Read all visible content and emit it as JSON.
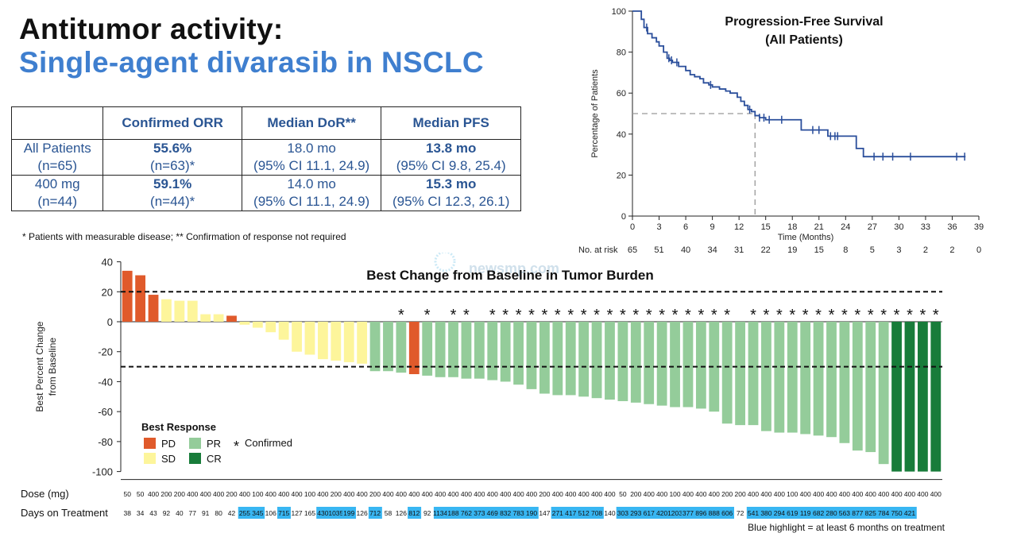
{
  "title": {
    "line1": "Antitumor activity:",
    "line2": "Single-agent divarasib in NSCLC"
  },
  "table": {
    "headers": [
      "",
      "Confirmed ORR",
      "Median DoR**",
      "Median PFS"
    ],
    "rows": [
      {
        "label1": "All Patients",
        "label2": "(n=65)",
        "orr1": "55.6%",
        "orr2": "(n=63)*",
        "dor1": "18.0 mo",
        "dor2": "(95% CI 11.1, 24.9)",
        "pfs1": "13.8 mo",
        "pfs2": "(95% CI 9.8, 25.4)"
      },
      {
        "label1": "400 mg",
        "label2": "(n=44)",
        "orr1": "59.1%",
        "orr2": "(n=44)*",
        "dor1": "14.0 mo",
        "dor2": "(95% CI 11.1, 24.9)",
        "pfs1": "15.3 mo",
        "pfs2": "(95% CI 12.3, 26.1)"
      }
    ]
  },
  "footnote": "* Patients with measurable disease; ** Confirmation of response not required",
  "watermark": "newsmp.com",
  "colors": {
    "PD": "#e05a2b",
    "SD": "#fdf59b",
    "PR": "#94cc9a",
    "CR": "#187c3a",
    "line": "#2a4e9b",
    "highlight": "#38b6f2"
  },
  "chart_data": [
    {
      "type": "line",
      "title": "Progression-Free Survival",
      "subtitle": "(All Patients)",
      "xlabel": "Time (Months)",
      "ylabel": "Percentage of Patients",
      "xlim": [
        0,
        39
      ],
      "ylim": [
        0,
        100
      ],
      "xticks": [
        0,
        3,
        6,
        9,
        12,
        15,
        18,
        21,
        24,
        27,
        30,
        33,
        36,
        39
      ],
      "yticks": [
        0,
        20,
        40,
        60,
        80,
        100
      ],
      "median_line": {
        "x": 13.8,
        "y": 50
      },
      "series": [
        {
          "name": "PFS",
          "x": [
            0,
            1.0,
            1.3,
            1.7,
            2.2,
            2.7,
            3.0,
            3.5,
            3.9,
            4.2,
            4.5,
            5.2,
            6.0,
            6.5,
            7.0,
            7.6,
            8.0,
            8.6,
            9.0,
            9.8,
            10.5,
            11.0,
            11.8,
            12.2,
            12.6,
            13.0,
            13.4,
            13.8,
            14.3,
            15.0,
            16.0,
            19.0,
            22.0,
            25.2,
            26.0,
            37.5
          ],
          "y": [
            100,
            96,
            92,
            89,
            87,
            85,
            83,
            80,
            77,
            76,
            75,
            73,
            71,
            69,
            68,
            67,
            65,
            64,
            63,
            62,
            61,
            60,
            58,
            56,
            54,
            52,
            51,
            49,
            48,
            47,
            47,
            42,
            39,
            33,
            29,
            29
          ]
        }
      ],
      "censor_x": [
        1.6,
        4.1,
        4.4,
        5.0,
        8.8,
        13.2,
        14.3,
        14.8,
        15.4,
        16.8,
        20.3,
        21.0,
        22.3,
        22.8,
        23.1,
        27.2,
        28.2,
        29.3,
        31.3,
        36.5,
        37.4
      ],
      "at_risk": {
        "label": "No. at risk",
        "times": [
          0,
          3,
          6,
          9,
          12,
          15,
          18,
          21,
          24,
          27,
          30,
          33,
          36,
          39
        ],
        "counts": [
          "65",
          "51",
          "40",
          "34",
          "31",
          "22",
          "19",
          "15",
          "8",
          "5",
          "3",
          "2",
          "2",
          "0"
        ]
      }
    },
    {
      "type": "bar",
      "title": "Best Change from Baseline in Tumor Burden",
      "ylabel_lines": [
        "Best Percent Change",
        "from Baseline"
      ],
      "ylim": [
        -100,
        40
      ],
      "yticks": [
        40,
        20,
        0,
        -20,
        -40,
        -60,
        -80,
        -100
      ],
      "reference_lines": [
        20,
        -30
      ],
      "values": [
        34,
        31,
        18,
        15,
        14,
        14,
        5,
        5,
        4,
        -2,
        -4,
        -7,
        -12,
        -20,
        -22,
        -25,
        -26,
        -27,
        -28,
        -33,
        -33,
        -34,
        -35,
        -36,
        -37,
        -37,
        -38,
        -38,
        -39,
        -40,
        -42,
        -45,
        -48,
        -49,
        -49,
        -50,
        -51,
        -52,
        -53,
        -54,
        -55,
        -56,
        -57,
        -57,
        -58,
        -60,
        -68,
        -69,
        -69,
        -73,
        -74,
        -74,
        -75,
        -76,
        -77,
        -81,
        -86,
        -87,
        -95,
        -100,
        -100,
        -100,
        -100
      ],
      "response": [
        "PD",
        "PD",
        "PD",
        "SD",
        "SD",
        "SD",
        "SD",
        "SD",
        "PD",
        "SD",
        "SD",
        "SD",
        "SD",
        "SD",
        "SD",
        "SD",
        "SD",
        "SD",
        "SD",
        "PR",
        "PR",
        "PR",
        "PD",
        "PR",
        "PR",
        "PR",
        "PR",
        "PR",
        "PR",
        "PR",
        "PR",
        "PR",
        "PR",
        "PR",
        "PR",
        "PR",
        "PR",
        "PR",
        "PR",
        "PR",
        "PR",
        "PR",
        "PR",
        "PR",
        "PR",
        "PR",
        "PR",
        "PR",
        "PR",
        "PR",
        "PR",
        "PR",
        "PR",
        "PR",
        "PR",
        "PR",
        "PR",
        "PR",
        "PR",
        "CR",
        "CR",
        "CR",
        "CR"
      ],
      "confirmed": [
        false,
        false,
        false,
        false,
        false,
        false,
        false,
        false,
        false,
        false,
        false,
        false,
        false,
        false,
        false,
        false,
        false,
        false,
        false,
        false,
        false,
        true,
        false,
        true,
        false,
        true,
        true,
        false,
        true,
        true,
        true,
        true,
        true,
        true,
        true,
        true,
        true,
        true,
        true,
        true,
        true,
        true,
        true,
        true,
        true,
        true,
        true,
        false,
        true,
        true,
        true,
        true,
        true,
        true,
        true,
        true,
        true,
        true,
        true,
        true,
        true,
        true,
        true
      ],
      "dose_label": "Dose (mg)",
      "dose": [
        "50",
        "50",
        "400",
        "200",
        "200",
        "400",
        "400",
        "400",
        "200",
        "400",
        "100",
        "400",
        "400",
        "400",
        "100",
        "400",
        "200",
        "400",
        "400",
        "200",
        "400",
        "400",
        "400",
        "400",
        "400",
        "400",
        "400",
        "400",
        "400",
        "400",
        "400",
        "400",
        "200",
        "400",
        "400",
        "400",
        "400",
        "400",
        "50",
        "200",
        "400",
        "400",
        "100",
        "400",
        "400",
        "400",
        "200",
        "200",
        "400",
        "400",
        "400",
        "100",
        "400",
        "400",
        "400",
        "400",
        "400",
        "400",
        "400",
        "400",
        "400",
        "400",
        "400"
      ],
      "days_label": "Days on Treatment",
      "days": [
        "38",
        "34",
        "43",
        "92",
        "40",
        "77",
        "91",
        "80",
        "42",
        "255",
        "345",
        "106",
        "715",
        "127",
        "165",
        "430",
        "1035",
        "199",
        "126",
        "712",
        "58",
        "126",
        "812",
        "92",
        "1134",
        "188",
        "762",
        "373",
        "469",
        "832",
        "783",
        "190",
        "147",
        "271",
        "417",
        "512",
        "708",
        "140",
        "303",
        "293",
        "617",
        "420",
        "1203",
        "377",
        "896",
        "888",
        "606",
        "72",
        "541",
        "380",
        "294",
        "619",
        "119",
        "682",
        "280",
        "563",
        "877",
        "825",
        "784",
        "750",
        "421",
        "",
        ""
      ],
      "days_highlight": [
        false,
        false,
        false,
        false,
        false,
        false,
        false,
        false,
        false,
        true,
        true,
        false,
        true,
        false,
        false,
        true,
        true,
        true,
        false,
        true,
        false,
        false,
        true,
        false,
        true,
        true,
        true,
        true,
        true,
        true,
        true,
        true,
        false,
        true,
        true,
        true,
        true,
        false,
        true,
        true,
        true,
        true,
        true,
        true,
        true,
        true,
        true,
        false,
        true,
        true,
        true,
        true,
        true,
        true,
        true,
        true,
        true,
        true,
        true,
        true,
        true,
        false,
        false
      ],
      "highlight_note": "Blue highlight = at least 6 months on treatment",
      "legend": {
        "title": "Best Response",
        "items": [
          {
            "key": "PD",
            "label": "PD"
          },
          {
            "key": "PR",
            "label": "PR"
          },
          {
            "key": "SD",
            "label": "SD"
          },
          {
            "key": "CR",
            "label": "CR"
          }
        ],
        "confirmed_label": "Confirmed"
      }
    }
  ]
}
